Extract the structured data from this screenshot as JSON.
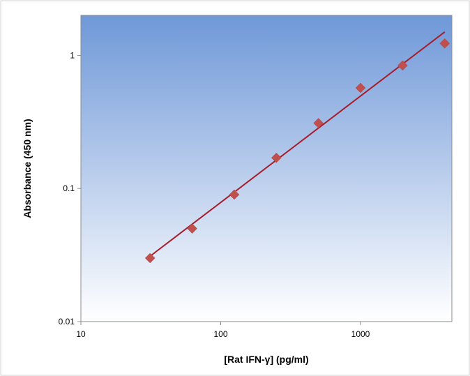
{
  "chart_data": {
    "type": "scatter",
    "xlabel": "[Rat IFN-γ] (pg/ml)",
    "ylabel": "Absorbance (450 nm)",
    "x_scale": "log",
    "y_scale": "log",
    "xlim": [
      10,
      4500
    ],
    "ylim": [
      0.01,
      2.0
    ],
    "x_ticks": [
      10,
      100,
      1000
    ],
    "x_tick_labels": [
      "10",
      "100",
      "1000"
    ],
    "y_ticks": [
      0.01,
      0.1,
      1
    ],
    "y_tick_labels": [
      "0.01",
      "0.1",
      "1"
    ],
    "grid": false,
    "legend": "none",
    "background": {
      "top_color": "#6f98d8",
      "bottom_color": "#ffffff"
    },
    "series": [
      {
        "marker": "diamond",
        "color": "#c0504d",
        "x": [
          31.25,
          62.5,
          125,
          250,
          500,
          1000,
          2000,
          4000
        ],
        "y": [
          0.03,
          0.05,
          0.09,
          0.17,
          0.31,
          0.57,
          0.84,
          1.23
        ]
      }
    ],
    "trendline": {
      "color": "#a61c2a",
      "x": [
        31.25,
        4000
      ],
      "y": [
        0.031,
        1.5
      ]
    }
  }
}
